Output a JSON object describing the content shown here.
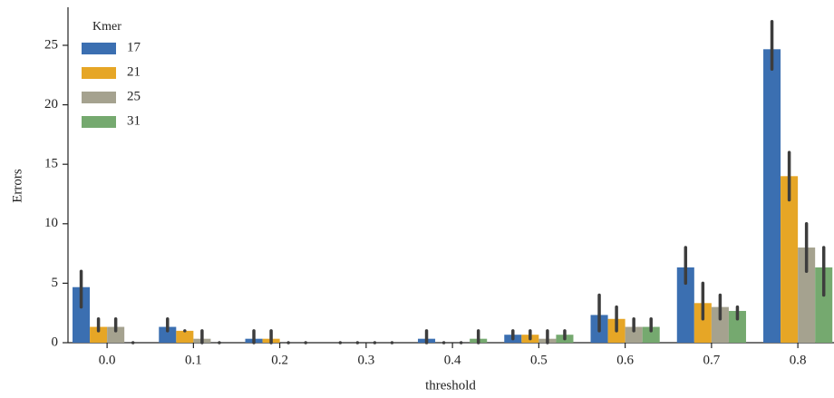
{
  "chart_data": {
    "type": "bar",
    "x_label": "threshold",
    "y_label": "Errors",
    "legend_title": "Kmer",
    "legend": "upper left",
    "categories": [
      "0.0",
      "0.1",
      "0.2",
      "0.3",
      "0.4",
      "0.5",
      "0.6",
      "0.7",
      "0.8"
    ],
    "series": [
      {
        "name": "17",
        "color": "#3b6fb1",
        "values": [
          4.67,
          1.33,
          0.33,
          0,
          0.33,
          0.67,
          2.33,
          6.33,
          24.67
        ],
        "ci": [
          [
            3,
            6
          ],
          [
            1,
            2
          ],
          [
            0,
            1
          ],
          [
            0,
            0
          ],
          [
            0,
            1
          ],
          [
            0.33,
            1
          ],
          [
            1,
            4
          ],
          [
            5,
            8
          ],
          [
            23,
            27
          ]
        ]
      },
      {
        "name": "21",
        "color": "#e6a626",
        "values": [
          1.33,
          1,
          0.33,
          0,
          0,
          0.67,
          2,
          3.33,
          14
        ],
        "ci": [
          [
            1,
            2
          ],
          [
            1,
            1
          ],
          [
            0,
            1
          ],
          [
            0,
            0
          ],
          [
            0,
            0
          ],
          [
            0.33,
            1
          ],
          [
            1,
            3
          ],
          [
            2,
            5
          ],
          [
            12,
            16
          ]
        ]
      },
      {
        "name": "25",
        "color": "#a5a28f",
        "values": [
          1.33,
          0.33,
          0,
          0,
          0,
          0.33,
          1.33,
          3,
          8
        ],
        "ci": [
          [
            1,
            2
          ],
          [
            0,
            1
          ],
          [
            0,
            0
          ],
          [
            0,
            0
          ],
          [
            0,
            0
          ],
          [
            0,
            1
          ],
          [
            1,
            2
          ],
          [
            2,
            4
          ],
          [
            6,
            10
          ]
        ]
      },
      {
        "name": "31",
        "color": "#75a96f",
        "values": [
          0,
          0,
          0,
          0,
          0.33,
          0.67,
          1.33,
          2.67,
          6.33
        ],
        "ci": [
          [
            0,
            0
          ],
          [
            0,
            0
          ],
          [
            0,
            0
          ],
          [
            0,
            0
          ],
          [
            0,
            1
          ],
          [
            0.33,
            1
          ],
          [
            1,
            2
          ],
          [
            2,
            3
          ],
          [
            4,
            8
          ]
        ]
      }
    ],
    "ylim": [
      0,
      28.2
    ],
    "yticks": [
      0,
      5,
      10,
      15,
      20,
      25
    ],
    "grid": false
  }
}
